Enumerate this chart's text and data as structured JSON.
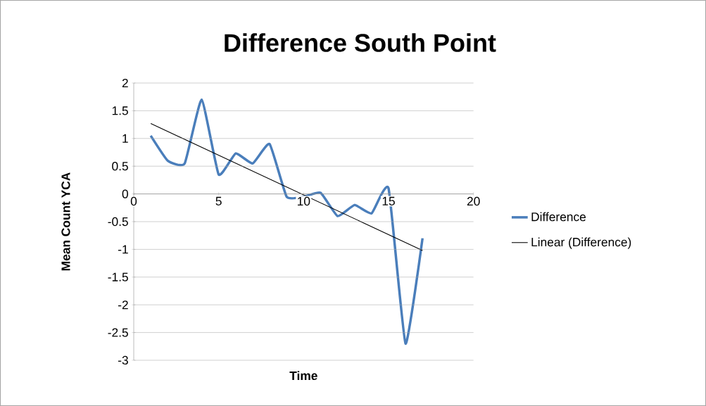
{
  "chart_data": {
    "type": "line",
    "title": "Difference South Point",
    "xlabel": "Time",
    "ylabel": "Mean Count YCA",
    "xlim": [
      0,
      20
    ],
    "xticks": [
      0,
      5,
      10,
      15,
      20
    ],
    "ylim": [
      -3,
      2
    ],
    "yticks": [
      -3,
      -2.5,
      -2,
      -1.5,
      -1,
      -0.5,
      0,
      0.5,
      1,
      1.5,
      2
    ],
    "grid": "y",
    "legend": "right",
    "marker": "none",
    "series": [
      {
        "name": "Difference",
        "color": "#4a7ebb",
        "x": [
          1,
          2,
          3,
          4,
          5,
          6,
          7,
          8,
          9,
          10,
          11,
          12,
          13,
          14,
          15,
          16,
          17
        ],
        "values": [
          1.05,
          0.6,
          0.55,
          1.7,
          0.35,
          0.73,
          0.55,
          0.9,
          -0.05,
          -0.05,
          0.02,
          -0.4,
          -0.2,
          -0.35,
          0.1,
          -2.7,
          -0.8
        ]
      },
      {
        "name": "Linear (Difference)",
        "color": "#000000",
        "type": "line",
        "x": [
          1,
          17
        ],
        "values": [
          1.27,
          -1.02
        ]
      }
    ]
  }
}
